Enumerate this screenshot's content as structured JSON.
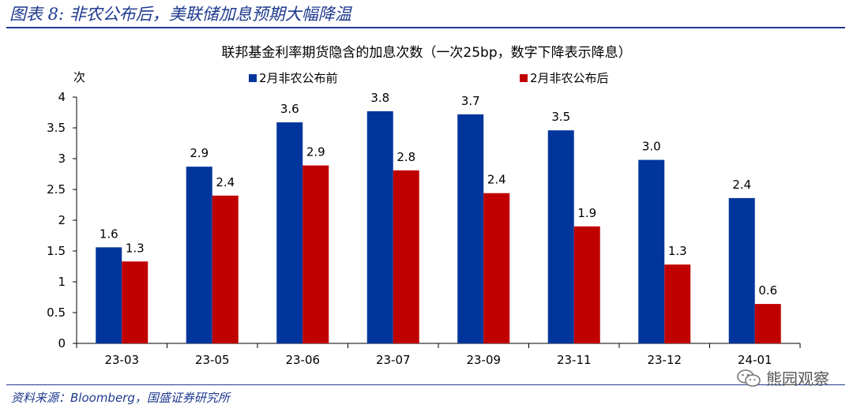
{
  "figure": {
    "title": "图表 8:  非农公布后，美联储加息预期大幅降温",
    "source": "资料来源：Bloomberg，国盛证券研究所",
    "watermark": "熊园观察",
    "watermark_icon": "wechat-icon"
  },
  "chart_data": {
    "type": "bar",
    "title": "联邦基金利率期货隐含的加息次数（一次25bp，数字下降表示降息）",
    "ylabel": "次",
    "xlabel": "",
    "ylim": [
      0,
      4
    ],
    "yticks": [
      "0",
      "0.5",
      "1",
      "1.5",
      "2",
      "2.5",
      "3",
      "3.5",
      "4"
    ],
    "categories": [
      "23-03",
      "23-05",
      "23-06",
      "23-07",
      "23-09",
      "23-11",
      "23-12",
      "24-01"
    ],
    "series": [
      {
        "name": "2月非农公布前",
        "color": "#00359c",
        "values": [
          1.56,
          2.87,
          3.59,
          3.77,
          3.72,
          3.46,
          2.98,
          2.36
        ],
        "labels": [
          "1.6",
          "2.9",
          "3.6",
          "3.8",
          "3.7",
          "3.5",
          "3.0",
          "2.4"
        ]
      },
      {
        "name": "2月非农公布后",
        "color": "#c00000",
        "values": [
          1.33,
          2.4,
          2.89,
          2.81,
          2.44,
          1.9,
          1.28,
          0.64
        ],
        "labels": [
          "1.3",
          "2.4",
          "2.9",
          "2.8",
          "2.4",
          "1.9",
          "1.3",
          "0.6"
        ]
      }
    ],
    "grid": false,
    "legend_position": "top"
  }
}
